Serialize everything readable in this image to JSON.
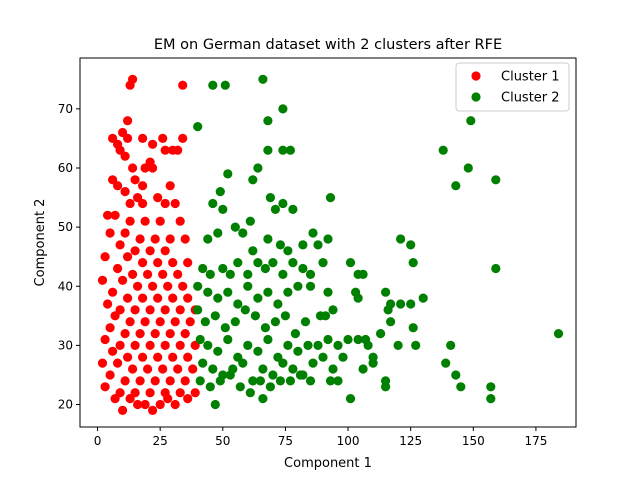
{
  "chart_data": {
    "type": "scatter",
    "title": "EM on German dataset with 2 clusters after RFE",
    "xlabel": "Component 1",
    "ylabel": "Component 2",
    "xlim": [
      -7,
      191
    ],
    "ylim": [
      16.2,
      78.6
    ],
    "xticks": [
      0,
      25,
      50,
      75,
      100,
      125,
      150,
      175
    ],
    "yticks": [
      20,
      30,
      40,
      50,
      60,
      70
    ],
    "grid": false,
    "legend": "top-right",
    "series": [
      {
        "name": "Cluster 1",
        "color": "#ff0000",
        "points": [
          [
            14,
            75
          ],
          [
            13,
            74
          ],
          [
            34,
            74
          ],
          [
            12,
            68
          ],
          [
            10,
            66
          ],
          [
            12,
            65
          ],
          [
            6,
            65
          ],
          [
            18,
            65
          ],
          [
            26,
            65
          ],
          [
            34,
            65
          ],
          [
            8,
            64
          ],
          [
            22,
            64
          ],
          [
            9,
            63
          ],
          [
            27,
            63
          ],
          [
            30,
            63
          ],
          [
            32,
            63
          ],
          [
            11,
            62
          ],
          [
            21,
            61
          ],
          [
            14,
            60
          ],
          [
            19,
            60
          ],
          [
            22,
            60
          ],
          [
            6,
            58
          ],
          [
            15,
            58
          ],
          [
            8,
            57
          ],
          [
            18,
            57
          ],
          [
            29,
            57
          ],
          [
            11,
            56
          ],
          [
            16,
            55
          ],
          [
            24,
            55
          ],
          [
            13,
            54
          ],
          [
            18,
            54
          ],
          [
            27,
            54
          ],
          [
            31,
            54
          ],
          [
            4,
            52
          ],
          [
            7,
            52
          ],
          [
            13,
            51
          ],
          [
            19,
            51
          ],
          [
            25,
            51
          ],
          [
            33,
            51
          ],
          [
            5,
            49
          ],
          [
            11,
            49
          ],
          [
            17,
            48
          ],
          [
            23,
            48
          ],
          [
            29,
            48
          ],
          [
            35,
            48
          ],
          [
            9,
            47
          ],
          [
            15,
            46
          ],
          [
            21,
            46
          ],
          [
            27,
            46
          ],
          [
            3,
            45
          ],
          [
            12,
            45
          ],
          [
            18,
            44
          ],
          [
            24,
            44
          ],
          [
            30,
            44
          ],
          [
            36,
            44
          ],
          [
            8,
            43
          ],
          [
            14,
            42
          ],
          [
            20,
            42
          ],
          [
            26,
            42
          ],
          [
            32,
            42
          ],
          [
            2,
            41
          ],
          [
            10,
            41
          ],
          [
            16,
            40
          ],
          [
            22,
            40
          ],
          [
            28,
            40
          ],
          [
            34,
            40
          ],
          [
            6,
            39
          ],
          [
            12,
            38
          ],
          [
            18,
            38
          ],
          [
            24,
            38
          ],
          [
            30,
            38
          ],
          [
            36,
            38
          ],
          [
            4,
            37
          ],
          [
            9,
            36
          ],
          [
            15,
            36
          ],
          [
            21,
            36
          ],
          [
            27,
            36
          ],
          [
            33,
            36
          ],
          [
            39,
            36
          ],
          [
            7,
            35
          ],
          [
            13,
            34
          ],
          [
            19,
            34
          ],
          [
            25,
            34
          ],
          [
            31,
            34
          ],
          [
            37,
            34
          ],
          [
            5,
            33
          ],
          [
            11,
            32
          ],
          [
            17,
            32
          ],
          [
            23,
            32
          ],
          [
            29,
            32
          ],
          [
            35,
            32
          ],
          [
            3,
            31
          ],
          [
            9,
            30
          ],
          [
            15,
            30
          ],
          [
            21,
            30
          ],
          [
            27,
            30
          ],
          [
            33,
            30
          ],
          [
            39,
            30
          ],
          [
            6,
            29
          ],
          [
            12,
            28
          ],
          [
            18,
            28
          ],
          [
            24,
            28
          ],
          [
            30,
            28
          ],
          [
            36,
            28
          ],
          [
            2,
            27
          ],
          [
            8,
            27
          ],
          [
            14,
            26
          ],
          [
            20,
            26
          ],
          [
            26,
            26
          ],
          [
            32,
            26
          ],
          [
            38,
            26
          ],
          [
            5,
            25
          ],
          [
            11,
            24
          ],
          [
            17,
            24
          ],
          [
            23,
            24
          ],
          [
            29,
            24
          ],
          [
            35,
            24
          ],
          [
            3,
            23
          ],
          [
            9,
            22
          ],
          [
            15,
            22
          ],
          [
            21,
            22
          ],
          [
            27,
            22
          ],
          [
            33,
            22
          ],
          [
            39,
            22
          ],
          [
            7,
            21
          ],
          [
            13,
            21
          ],
          [
            19,
            20
          ],
          [
            25,
            20
          ],
          [
            31,
            20
          ],
          [
            10,
            19
          ],
          [
            22,
            19
          ],
          [
            16,
            20
          ],
          [
            28,
            21
          ],
          [
            36,
            21
          ]
        ]
      },
      {
        "name": "Cluster 2",
        "color": "#008000",
        "points": [
          [
            46,
            74
          ],
          [
            51,
            74
          ],
          [
            66,
            75
          ],
          [
            74,
            70
          ],
          [
            40,
            67
          ],
          [
            68,
            68
          ],
          [
            74,
            63
          ],
          [
            77,
            63
          ],
          [
            68,
            63
          ],
          [
            64,
            60
          ],
          [
            62,
            58
          ],
          [
            52,
            59
          ],
          [
            49,
            56
          ],
          [
            46,
            54
          ],
          [
            50,
            53
          ],
          [
            55,
            50
          ],
          [
            61,
            51
          ],
          [
            71,
            53
          ],
          [
            74,
            54
          ],
          [
            78,
            53
          ],
          [
            69,
            55
          ],
          [
            93,
            55
          ],
          [
            44,
            48
          ],
          [
            48,
            49
          ],
          [
            58,
            49
          ],
          [
            62,
            46
          ],
          [
            68,
            48
          ],
          [
            73,
            47
          ],
          [
            76,
            46
          ],
          [
            82,
            47
          ],
          [
            86,
            49
          ],
          [
            88,
            47
          ],
          [
            92,
            48
          ],
          [
            42,
            43
          ],
          [
            45,
            42
          ],
          [
            50,
            43
          ],
          [
            53,
            42
          ],
          [
            56,
            44
          ],
          [
            60,
            42
          ],
          [
            64,
            44
          ],
          [
            67,
            43
          ],
          [
            70,
            44
          ],
          [
            74,
            42
          ],
          [
            78,
            44
          ],
          [
            82,
            43
          ],
          [
            85,
            42
          ],
          [
            90,
            44
          ],
          [
            101,
            44
          ],
          [
            104,
            42
          ],
          [
            106,
            42
          ],
          [
            121,
            48
          ],
          [
            125,
            47
          ],
          [
            126,
            44
          ],
          [
            40,
            40
          ],
          [
            44,
            39
          ],
          [
            48,
            38
          ],
          [
            52,
            39
          ],
          [
            56,
            37
          ],
          [
            60,
            40
          ],
          [
            64,
            38
          ],
          [
            68,
            39
          ],
          [
            72,
            37
          ],
          [
            76,
            39
          ],
          [
            80,
            40
          ],
          [
            85,
            40
          ],
          [
            92,
            39
          ],
          [
            94,
            36
          ],
          [
            103,
            39
          ],
          [
            104,
            38
          ],
          [
            115,
            39
          ],
          [
            116,
            36
          ],
          [
            117,
            37
          ],
          [
            121,
            37
          ],
          [
            125,
            37
          ],
          [
            130,
            38
          ],
          [
            40,
            36
          ],
          [
            43,
            34
          ],
          [
            47,
            35
          ],
          [
            51,
            33
          ],
          [
            55,
            34
          ],
          [
            59,
            36
          ],
          [
            63,
            35
          ],
          [
            67,
            33
          ],
          [
            71,
            34
          ],
          [
            75,
            35
          ],
          [
            79,
            32
          ],
          [
            83,
            34
          ],
          [
            89,
            35
          ],
          [
            91,
            35
          ],
          [
            104,
            31
          ],
          [
            107,
            31
          ],
          [
            110,
            28
          ],
          [
            113,
            32
          ],
          [
            117,
            34
          ],
          [
            120,
            30
          ],
          [
            126,
            33
          ],
          [
            41,
            31
          ],
          [
            44,
            30
          ],
          [
            48,
            29
          ],
          [
            52,
            31
          ],
          [
            56,
            28
          ],
          [
            60,
            30
          ],
          [
            64,
            29
          ],
          [
            68,
            31
          ],
          [
            72,
            28
          ],
          [
            76,
            30
          ],
          [
            80,
            29
          ],
          [
            84,
            30
          ],
          [
            88,
            30
          ],
          [
            92,
            31
          ],
          [
            96,
            30
          ],
          [
            100,
            31
          ],
          [
            108,
            30
          ],
          [
            127,
            30
          ],
          [
            141,
            30
          ],
          [
            42,
            27
          ],
          [
            46,
            26
          ],
          [
            50,
            25
          ],
          [
            54,
            26
          ],
          [
            58,
            27
          ],
          [
            62,
            24
          ],
          [
            66,
            26
          ],
          [
            70,
            25
          ],
          [
            74,
            27
          ],
          [
            78,
            26
          ],
          [
            82,
            25
          ],
          [
            86,
            27
          ],
          [
            90,
            28
          ],
          [
            94,
            26
          ],
          [
            98,
            28
          ],
          [
            110,
            27
          ],
          [
            139,
            27
          ],
          [
            41,
            24
          ],
          [
            45,
            23
          ],
          [
            49,
            24
          ],
          [
            53,
            25
          ],
          [
            57,
            23
          ],
          [
            61,
            22
          ],
          [
            65,
            24
          ],
          [
            69,
            23
          ],
          [
            73,
            24
          ],
          [
            77,
            24
          ],
          [
            81,
            25
          ],
          [
            85,
            24
          ],
          [
            93,
            24
          ],
          [
            96,
            24
          ],
          [
            106,
            26
          ],
          [
            115,
            24
          ],
          [
            115,
            23
          ],
          [
            143,
            25
          ],
          [
            145,
            23
          ],
          [
            157,
            23
          ],
          [
            157,
            21
          ],
          [
            47,
            20
          ],
          [
            66,
            21
          ],
          [
            101,
            21
          ],
          [
            138,
            63
          ],
          [
            148,
            60
          ],
          [
            149,
            68
          ],
          [
            143,
            57
          ],
          [
            159,
            58
          ],
          [
            159,
            43
          ],
          [
            184,
            32
          ]
        ]
      }
    ]
  }
}
